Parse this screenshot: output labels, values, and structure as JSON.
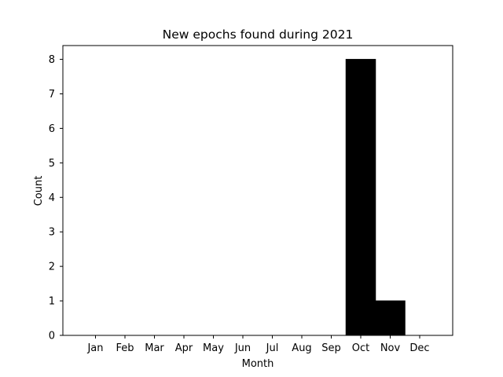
{
  "chart_data": {
    "type": "bar",
    "title": "New epochs found during 2021",
    "xlabel": "Month",
    "ylabel": "Count",
    "categories": [
      "Jan",
      "Feb",
      "Mar",
      "Apr",
      "May",
      "Jun",
      "Jul",
      "Aug",
      "Sep",
      "Oct",
      "Nov",
      "Dec"
    ],
    "values": [
      0,
      0,
      0,
      0,
      0,
      0,
      0,
      0,
      0,
      8,
      1,
      0
    ],
    "ylim": [
      0,
      8.4
    ],
    "yticks": [
      0,
      1,
      2,
      3,
      4,
      5,
      6,
      7,
      8
    ],
    "grid": false,
    "legend": "none",
    "bar_color": "#000000"
  }
}
